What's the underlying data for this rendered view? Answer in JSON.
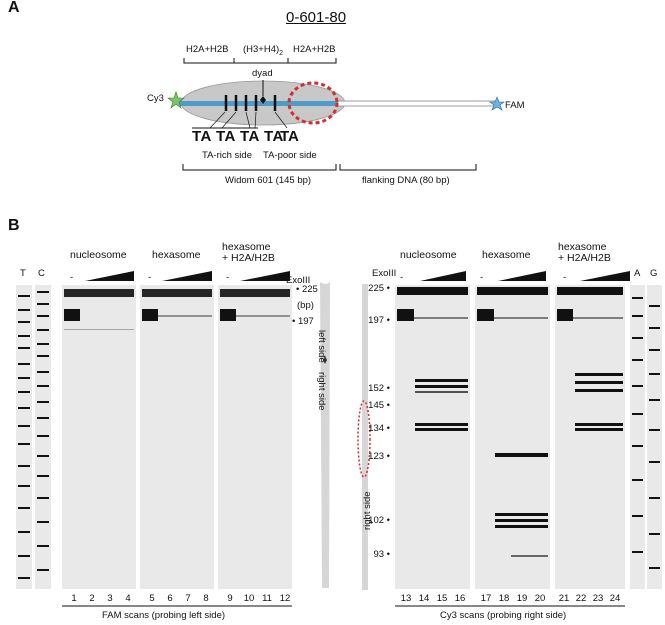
{
  "panel_a": {
    "label": "A",
    "title": "0-601-80",
    "h2a_left": "H2A+H2B",
    "h3h4": "(H3+H4)",
    "h3h4_sub": "2",
    "h2a_right": "H2A+H2B",
    "dyad": "dyad",
    "cy3": "Cy3",
    "fam": "FAM",
    "ta_rich_seq": "TA TA TA TA",
    "ta_rich_label": "TA-rich side",
    "ta_poor_seq": "TA",
    "ta_poor_label": "TA-poor side",
    "widom": "Widom 601 (145 bp)",
    "flanking": "flanking DNA (80 bp)",
    "colors": {
      "dna_blue": "#4f9cc8",
      "histone_gray": "#c8c8c8",
      "unwrap_red": "#d03030",
      "cy3_star": "#7cc46a",
      "fam_star": "#6ab4e0"
    }
  },
  "panel_b": {
    "label": "B",
    "left": {
      "T": "T",
      "C": "C",
      "groups": [
        "nucleosome",
        "hexasome",
        "hexasome\n+ H2A/H2B"
      ],
      "minus": "-",
      "exo": "ExoIII",
      "m225": "225",
      "bp": "(bp)",
      "m197": "197",
      "lanes": [
        "1",
        "2",
        "3",
        "4",
        "5",
        "6",
        "7",
        "8",
        "9",
        "10",
        "11",
        "12"
      ],
      "caption": "FAM scans (probing left side)",
      "side_left": "left side",
      "side_right": "right side"
    },
    "right": {
      "exo": "ExoIII",
      "groups": [
        "nucleosome",
        "hexasome",
        "hexasome\n+ H2A/H2B"
      ],
      "minus": "-",
      "markers": [
        "225",
        "197",
        "152",
        "145",
        "134",
        "123",
        "102",
        "93"
      ],
      "lanes": [
        "13",
        "14",
        "15",
        "16",
        "17",
        "18",
        "19",
        "20",
        "21",
        "22",
        "23",
        "24"
      ],
      "caption": "Cy3 scans (probing right side)",
      "A": "A",
      "G": "G",
      "side_right": "right side"
    }
  }
}
